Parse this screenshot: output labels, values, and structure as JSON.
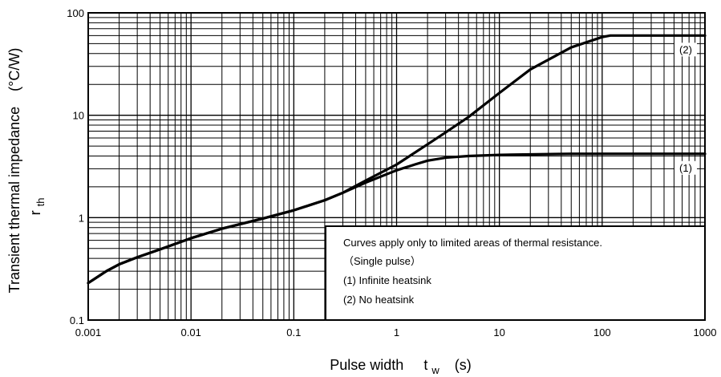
{
  "chart_data": {
    "type": "line",
    "x_scale": "log",
    "y_scale": "log",
    "xlim": [
      0.001,
      1000
    ],
    "ylim": [
      0.1,
      100
    ],
    "x_ticks": [
      {
        "value": 0.001,
        "label": "0.001"
      },
      {
        "value": 0.01,
        "label": "0.01"
      },
      {
        "value": 0.1,
        "label": "0.1"
      },
      {
        "value": 1,
        "label": "1"
      },
      {
        "value": 10,
        "label": "10"
      },
      {
        "value": 100,
        "label": "100"
      },
      {
        "value": 1000,
        "label": "1000"
      }
    ],
    "y_ticks": [
      {
        "value": 0.1,
        "label": "0.1"
      },
      {
        "value": 1,
        "label": "1"
      },
      {
        "value": 10,
        "label": "10"
      },
      {
        "value": 100,
        "label": "100"
      }
    ],
    "grid": true,
    "xlabel": {
      "main": "Pulse width",
      "symbol": "t",
      "subscript": "w",
      "unit": "(s)"
    },
    "ylabel": {
      "main": "Transient thermal impedance",
      "symbol": "r",
      "subscript": "th",
      "unit": "(°C/W)"
    },
    "series": [
      {
        "name": "(1)",
        "x": [
          0.001,
          0.0015,
          0.002,
          0.003,
          0.005,
          0.01,
          0.02,
          0.05,
          0.1,
          0.2,
          0.3,
          0.5,
          1,
          1.5,
          2,
          3,
          5,
          10,
          20,
          50,
          100,
          200,
          500,
          1000
        ],
        "y": [
          0.23,
          0.3,
          0.35,
          0.41,
          0.49,
          0.63,
          0.78,
          0.98,
          1.18,
          1.48,
          1.75,
          2.2,
          2.9,
          3.3,
          3.6,
          3.85,
          4.0,
          4.1,
          4.15,
          4.2,
          4.2,
          4.2,
          4.2,
          4.2
        ]
      },
      {
        "name": "(2)",
        "x": [
          0.001,
          0.0015,
          0.002,
          0.003,
          0.005,
          0.01,
          0.02,
          0.05,
          0.1,
          0.2,
          0.3,
          0.5,
          1,
          2,
          3,
          5,
          10,
          20,
          50,
          100,
          120,
          200,
          500,
          1000
        ],
        "y": [
          0.23,
          0.3,
          0.35,
          0.41,
          0.49,
          0.63,
          0.78,
          0.98,
          1.18,
          1.48,
          1.75,
          2.3,
          3.3,
          5.2,
          6.8,
          9.6,
          16.5,
          28,
          46,
          58,
          60,
          60,
          60,
          60
        ]
      }
    ],
    "note": {
      "lines": [
        "Curves apply only to limited areas of thermal resistance.",
        "（Single pulse）",
        "(1) Infinite heatsink",
        "(2) No heatsink"
      ]
    }
  }
}
